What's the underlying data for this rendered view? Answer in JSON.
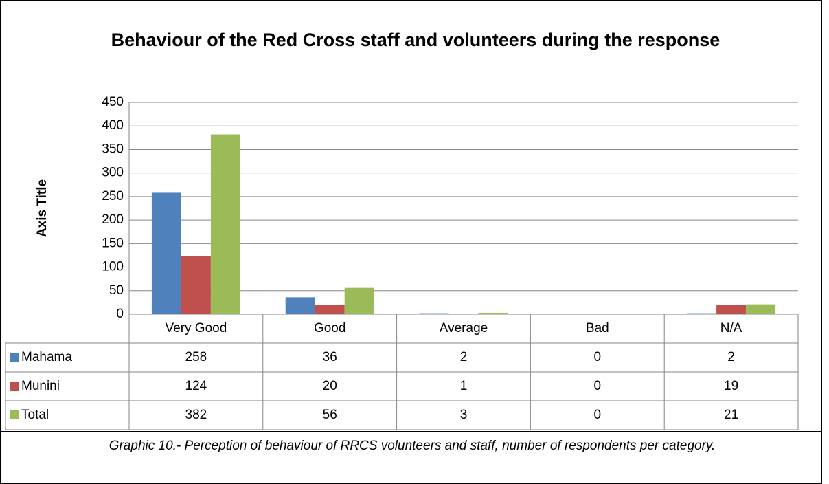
{
  "chart_data": {
    "type": "bar",
    "title": "Behaviour of the Red Cross staff and volunteers during the response",
    "y_axis_label": "Axis Title",
    "categories": [
      "Very Good",
      "Good",
      "Average",
      "Bad",
      "N/A"
    ],
    "series": [
      {
        "name": "Mahama",
        "color": "#4f81bd",
        "values": [
          258,
          36,
          2,
          0,
          2
        ]
      },
      {
        "name": "Munini",
        "color": "#c0504d",
        "values": [
          124,
          20,
          1,
          0,
          19
        ]
      },
      {
        "name": "Total",
        "color": "#9bbb59",
        "values": [
          382,
          56,
          3,
          0,
          21
        ]
      }
    ],
    "ylim": [
      0,
      450
    ],
    "yticks": [
      0,
      50,
      100,
      150,
      200,
      250,
      300,
      350,
      400,
      450
    ],
    "grid": true,
    "caption": "Graphic 10.- Perception of behaviour of RRCS volunteers and staff, number of respondents per category."
  }
}
